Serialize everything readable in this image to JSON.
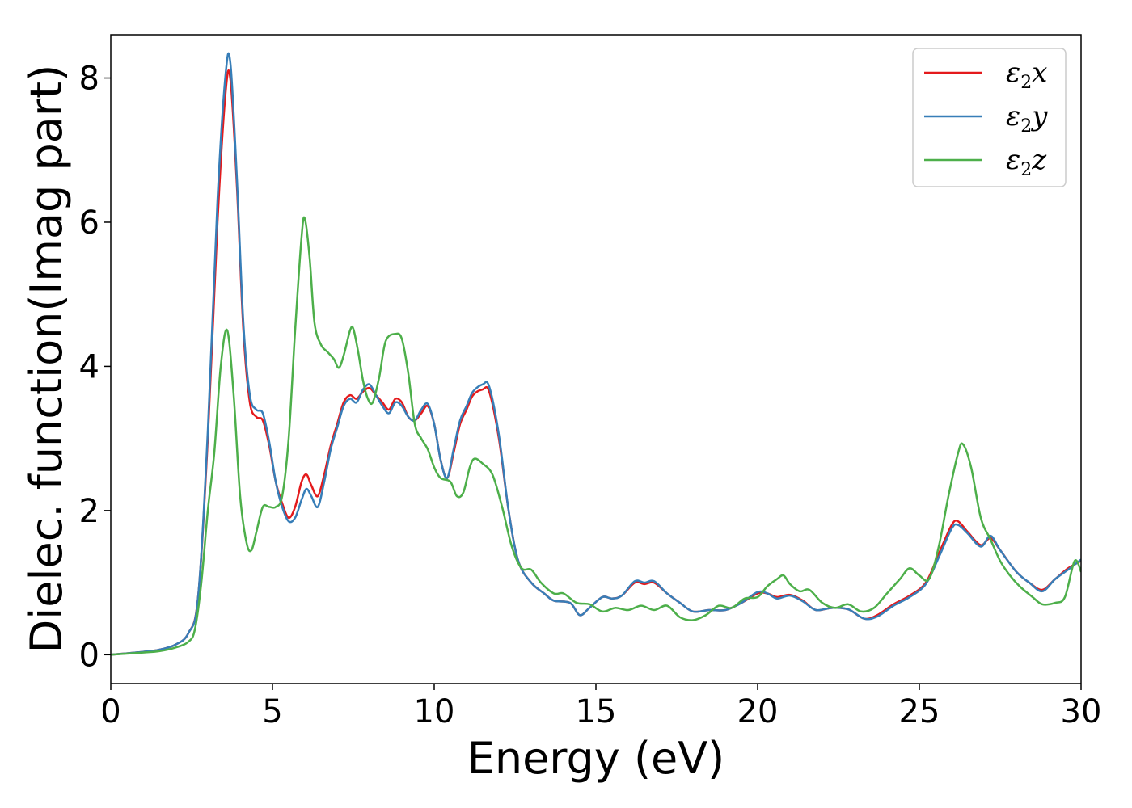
{
  "chart_data": {
    "type": "line",
    "title": "",
    "xlabel": "Energy (eV)",
    "ylabel": "Dielec. function(Imag part)",
    "xlim": [
      0,
      30
    ],
    "ylim": [
      -0.4,
      8.6
    ],
    "xticks": [
      0,
      5,
      10,
      15,
      20,
      25,
      30
    ],
    "xtick_labels": [
      "0",
      "5",
      "10",
      "15",
      "20",
      "25",
      "30"
    ],
    "yticks": [
      0,
      2,
      4,
      6,
      8
    ],
    "ytick_labels": [
      "0",
      "2",
      "4",
      "6",
      "8"
    ],
    "grid": false,
    "legend_position": "top-right",
    "series": [
      {
        "name": "ε2x",
        "legend_base": "ε",
        "legend_sub": "2",
        "legend_suffix": "x",
        "color": "#e41a1c",
        "points": [
          [
            0,
            0
          ],
          [
            1,
            0.04
          ],
          [
            1.5,
            0.07
          ],
          [
            2,
            0.14
          ],
          [
            2.4,
            0.3
          ],
          [
            2.7,
            0.8
          ],
          [
            3,
            3.0
          ],
          [
            3.3,
            6.0
          ],
          [
            3.55,
            7.8
          ],
          [
            3.7,
            7.98
          ],
          [
            3.9,
            6.5
          ],
          [
            4.1,
            4.5
          ],
          [
            4.3,
            3.5
          ],
          [
            4.5,
            3.3
          ],
          [
            4.7,
            3.25
          ],
          [
            4.9,
            2.9
          ],
          [
            5.1,
            2.4
          ],
          [
            5.3,
            2.1
          ],
          [
            5.5,
            1.9
          ],
          [
            5.7,
            2.05
          ],
          [
            5.9,
            2.4
          ],
          [
            6.05,
            2.5
          ],
          [
            6.2,
            2.35
          ],
          [
            6.4,
            2.2
          ],
          [
            6.6,
            2.5
          ],
          [
            6.8,
            2.9
          ],
          [
            7.0,
            3.2
          ],
          [
            7.2,
            3.5
          ],
          [
            7.4,
            3.6
          ],
          [
            7.6,
            3.55
          ],
          [
            7.8,
            3.65
          ],
          [
            8.0,
            3.7
          ],
          [
            8.2,
            3.6
          ],
          [
            8.4,
            3.5
          ],
          [
            8.6,
            3.4
          ],
          [
            8.8,
            3.55
          ],
          [
            9.0,
            3.5
          ],
          [
            9.2,
            3.3
          ],
          [
            9.4,
            3.25
          ],
          [
            9.6,
            3.35
          ],
          [
            9.8,
            3.45
          ],
          [
            10.0,
            3.2
          ],
          [
            10.2,
            2.7
          ],
          [
            10.4,
            2.45
          ],
          [
            10.6,
            2.8
          ],
          [
            10.8,
            3.2
          ],
          [
            11.0,
            3.4
          ],
          [
            11.2,
            3.6
          ],
          [
            11.5,
            3.68
          ],
          [
            11.7,
            3.65
          ],
          [
            12.0,
            3.0
          ],
          [
            12.3,
            2.0
          ],
          [
            12.6,
            1.3
          ],
          [
            13.0,
            1.0
          ],
          [
            13.4,
            0.85
          ],
          [
            13.7,
            0.75
          ],
          [
            14.2,
            0.72
          ],
          [
            14.5,
            0.55
          ],
          [
            14.8,
            0.65
          ],
          [
            15.2,
            0.8
          ],
          [
            15.5,
            0.78
          ],
          [
            15.8,
            0.82
          ],
          [
            16.2,
            1.0
          ],
          [
            16.5,
            0.98
          ],
          [
            16.8,
            1.0
          ],
          [
            17.2,
            0.85
          ],
          [
            17.6,
            0.72
          ],
          [
            18.0,
            0.6
          ],
          [
            18.5,
            0.62
          ],
          [
            19.0,
            0.62
          ],
          [
            19.5,
            0.72
          ],
          [
            20.0,
            0.85
          ],
          [
            20.3,
            0.85
          ],
          [
            20.6,
            0.8
          ],
          [
            21.0,
            0.83
          ],
          [
            21.4,
            0.75
          ],
          [
            21.8,
            0.62
          ],
          [
            22.3,
            0.65
          ],
          [
            22.8,
            0.63
          ],
          [
            23.3,
            0.5
          ],
          [
            23.7,
            0.55
          ],
          [
            24.2,
            0.7
          ],
          [
            24.7,
            0.82
          ],
          [
            25.2,
            1.0
          ],
          [
            25.6,
            1.4
          ],
          [
            26.0,
            1.8
          ],
          [
            26.2,
            1.85
          ],
          [
            26.5,
            1.7
          ],
          [
            26.9,
            1.52
          ],
          [
            27.2,
            1.62
          ],
          [
            27.5,
            1.45
          ],
          [
            28.0,
            1.15
          ],
          [
            28.4,
            1.0
          ],
          [
            28.8,
            0.9
          ],
          [
            29.2,
            1.05
          ],
          [
            29.6,
            1.2
          ],
          [
            30.0,
            1.3
          ]
        ]
      },
      {
        "name": "ε2y",
        "legend_base": "ε",
        "legend_sub": "2",
        "legend_suffix": "y",
        "color": "#377eb8",
        "points": [
          [
            0,
            0
          ],
          [
            1,
            0.04
          ],
          [
            1.5,
            0.07
          ],
          [
            2,
            0.14
          ],
          [
            2.4,
            0.3
          ],
          [
            2.7,
            0.8
          ],
          [
            3,
            3.1
          ],
          [
            3.3,
            6.3
          ],
          [
            3.55,
            8.05
          ],
          [
            3.7,
            8.2
          ],
          [
            3.9,
            6.6
          ],
          [
            4.1,
            4.6
          ],
          [
            4.3,
            3.6
          ],
          [
            4.5,
            3.4
          ],
          [
            4.7,
            3.35
          ],
          [
            4.9,
            2.95
          ],
          [
            5.1,
            2.4
          ],
          [
            5.3,
            2.05
          ],
          [
            5.5,
            1.85
          ],
          [
            5.7,
            1.9
          ],
          [
            5.9,
            2.15
          ],
          [
            6.05,
            2.3
          ],
          [
            6.2,
            2.2
          ],
          [
            6.4,
            2.05
          ],
          [
            6.6,
            2.4
          ],
          [
            6.8,
            2.85
          ],
          [
            7.0,
            3.15
          ],
          [
            7.2,
            3.45
          ],
          [
            7.4,
            3.55
          ],
          [
            7.6,
            3.5
          ],
          [
            7.8,
            3.68
          ],
          [
            8.0,
            3.75
          ],
          [
            8.2,
            3.6
          ],
          [
            8.4,
            3.45
          ],
          [
            8.6,
            3.35
          ],
          [
            8.8,
            3.5
          ],
          [
            9.0,
            3.45
          ],
          [
            9.2,
            3.3
          ],
          [
            9.4,
            3.25
          ],
          [
            9.6,
            3.4
          ],
          [
            9.8,
            3.48
          ],
          [
            10.0,
            3.2
          ],
          [
            10.2,
            2.7
          ],
          [
            10.4,
            2.45
          ],
          [
            10.6,
            2.85
          ],
          [
            10.8,
            3.25
          ],
          [
            11.0,
            3.45
          ],
          [
            11.2,
            3.65
          ],
          [
            11.5,
            3.75
          ],
          [
            11.7,
            3.72
          ],
          [
            12.0,
            3.05
          ],
          [
            12.3,
            2.0
          ],
          [
            12.6,
            1.3
          ],
          [
            13.0,
            1.0
          ],
          [
            13.4,
            0.85
          ],
          [
            13.7,
            0.75
          ],
          [
            14.2,
            0.72
          ],
          [
            14.5,
            0.55
          ],
          [
            14.8,
            0.65
          ],
          [
            15.2,
            0.8
          ],
          [
            15.5,
            0.78
          ],
          [
            15.8,
            0.82
          ],
          [
            16.2,
            1.02
          ],
          [
            16.5,
            1.0
          ],
          [
            16.8,
            1.02
          ],
          [
            17.2,
            0.85
          ],
          [
            17.6,
            0.72
          ],
          [
            18.0,
            0.6
          ],
          [
            18.5,
            0.62
          ],
          [
            19.0,
            0.62
          ],
          [
            19.5,
            0.72
          ],
          [
            20.0,
            0.87
          ],
          [
            20.3,
            0.85
          ],
          [
            20.6,
            0.78
          ],
          [
            21.0,
            0.82
          ],
          [
            21.4,
            0.74
          ],
          [
            21.8,
            0.62
          ],
          [
            22.3,
            0.65
          ],
          [
            22.8,
            0.63
          ],
          [
            23.3,
            0.5
          ],
          [
            23.7,
            0.53
          ],
          [
            24.2,
            0.68
          ],
          [
            24.7,
            0.8
          ],
          [
            25.2,
            0.98
          ],
          [
            25.6,
            1.35
          ],
          [
            26.0,
            1.75
          ],
          [
            26.2,
            1.8
          ],
          [
            26.5,
            1.68
          ],
          [
            26.9,
            1.5
          ],
          [
            27.2,
            1.65
          ],
          [
            27.5,
            1.45
          ],
          [
            28.0,
            1.15
          ],
          [
            28.4,
            1.0
          ],
          [
            28.8,
            0.88
          ],
          [
            29.2,
            1.05
          ],
          [
            29.6,
            1.18
          ],
          [
            30.0,
            1.32
          ]
        ]
      },
      {
        "name": "ε2z",
        "legend_base": "ε",
        "legend_sub": "2",
        "legend_suffix": "z",
        "color": "#4daf4a",
        "points": [
          [
            0,
            0
          ],
          [
            1,
            0.03
          ],
          [
            1.5,
            0.05
          ],
          [
            2,
            0.1
          ],
          [
            2.4,
            0.18
          ],
          [
            2.6,
            0.35
          ],
          [
            2.8,
            1.0
          ],
          [
            3.0,
            2.0
          ],
          [
            3.2,
            2.8
          ],
          [
            3.4,
            4.0
          ],
          [
            3.6,
            4.5
          ],
          [
            3.8,
            3.6
          ],
          [
            4.0,
            2.2
          ],
          [
            4.2,
            1.55
          ],
          [
            4.35,
            1.45
          ],
          [
            4.5,
            1.7
          ],
          [
            4.7,
            2.05
          ],
          [
            4.9,
            2.05
          ],
          [
            5.1,
            2.05
          ],
          [
            5.3,
            2.2
          ],
          [
            5.5,
            3.0
          ],
          [
            5.7,
            4.5
          ],
          [
            5.9,
            5.8
          ],
          [
            6.0,
            6.05
          ],
          [
            6.15,
            5.5
          ],
          [
            6.3,
            4.6
          ],
          [
            6.5,
            4.3
          ],
          [
            6.7,
            4.2
          ],
          [
            6.9,
            4.1
          ],
          [
            7.05,
            3.98
          ],
          [
            7.2,
            4.15
          ],
          [
            7.4,
            4.5
          ],
          [
            7.5,
            4.52
          ],
          [
            7.65,
            4.2
          ],
          [
            7.8,
            3.8
          ],
          [
            7.95,
            3.55
          ],
          [
            8.1,
            3.5
          ],
          [
            8.3,
            3.85
          ],
          [
            8.5,
            4.35
          ],
          [
            8.8,
            4.45
          ],
          [
            9.0,
            4.38
          ],
          [
            9.2,
            3.9
          ],
          [
            9.4,
            3.2
          ],
          [
            9.6,
            3.0
          ],
          [
            9.8,
            2.85
          ],
          [
            10.0,
            2.6
          ],
          [
            10.2,
            2.45
          ],
          [
            10.5,
            2.4
          ],
          [
            10.7,
            2.2
          ],
          [
            10.9,
            2.25
          ],
          [
            11.1,
            2.6
          ],
          [
            11.25,
            2.72
          ],
          [
            11.5,
            2.65
          ],
          [
            11.8,
            2.5
          ],
          [
            12.1,
            2.05
          ],
          [
            12.4,
            1.5
          ],
          [
            12.7,
            1.2
          ],
          [
            13.0,
            1.18
          ],
          [
            13.3,
            1.0
          ],
          [
            13.7,
            0.85
          ],
          [
            14.0,
            0.85
          ],
          [
            14.4,
            0.72
          ],
          [
            14.8,
            0.7
          ],
          [
            15.2,
            0.6
          ],
          [
            15.6,
            0.65
          ],
          [
            16.0,
            0.62
          ],
          [
            16.4,
            0.68
          ],
          [
            16.8,
            0.62
          ],
          [
            17.2,
            0.68
          ],
          [
            17.6,
            0.52
          ],
          [
            18.0,
            0.48
          ],
          [
            18.4,
            0.55
          ],
          [
            18.8,
            0.68
          ],
          [
            19.2,
            0.65
          ],
          [
            19.6,
            0.78
          ],
          [
            20.0,
            0.8
          ],
          [
            20.3,
            0.95
          ],
          [
            20.6,
            1.05
          ],
          [
            20.8,
            1.1
          ],
          [
            21.0,
            0.98
          ],
          [
            21.3,
            0.88
          ],
          [
            21.6,
            0.9
          ],
          [
            22.0,
            0.72
          ],
          [
            22.4,
            0.65
          ],
          [
            22.8,
            0.7
          ],
          [
            23.2,
            0.6
          ],
          [
            23.6,
            0.65
          ],
          [
            24.0,
            0.85
          ],
          [
            24.4,
            1.05
          ],
          [
            24.7,
            1.2
          ],
          [
            25.0,
            1.1
          ],
          [
            25.3,
            1.05
          ],
          [
            25.6,
            1.5
          ],
          [
            25.9,
            2.2
          ],
          [
            26.2,
            2.8
          ],
          [
            26.35,
            2.92
          ],
          [
            26.6,
            2.6
          ],
          [
            26.9,
            1.9
          ],
          [
            27.2,
            1.6
          ],
          [
            27.5,
            1.3
          ],
          [
            27.8,
            1.1
          ],
          [
            28.1,
            0.95
          ],
          [
            28.5,
            0.8
          ],
          [
            28.8,
            0.7
          ],
          [
            29.2,
            0.72
          ],
          [
            29.5,
            0.8
          ],
          [
            29.8,
            1.3
          ],
          [
            30.0,
            1.15
          ]
        ]
      }
    ]
  }
}
